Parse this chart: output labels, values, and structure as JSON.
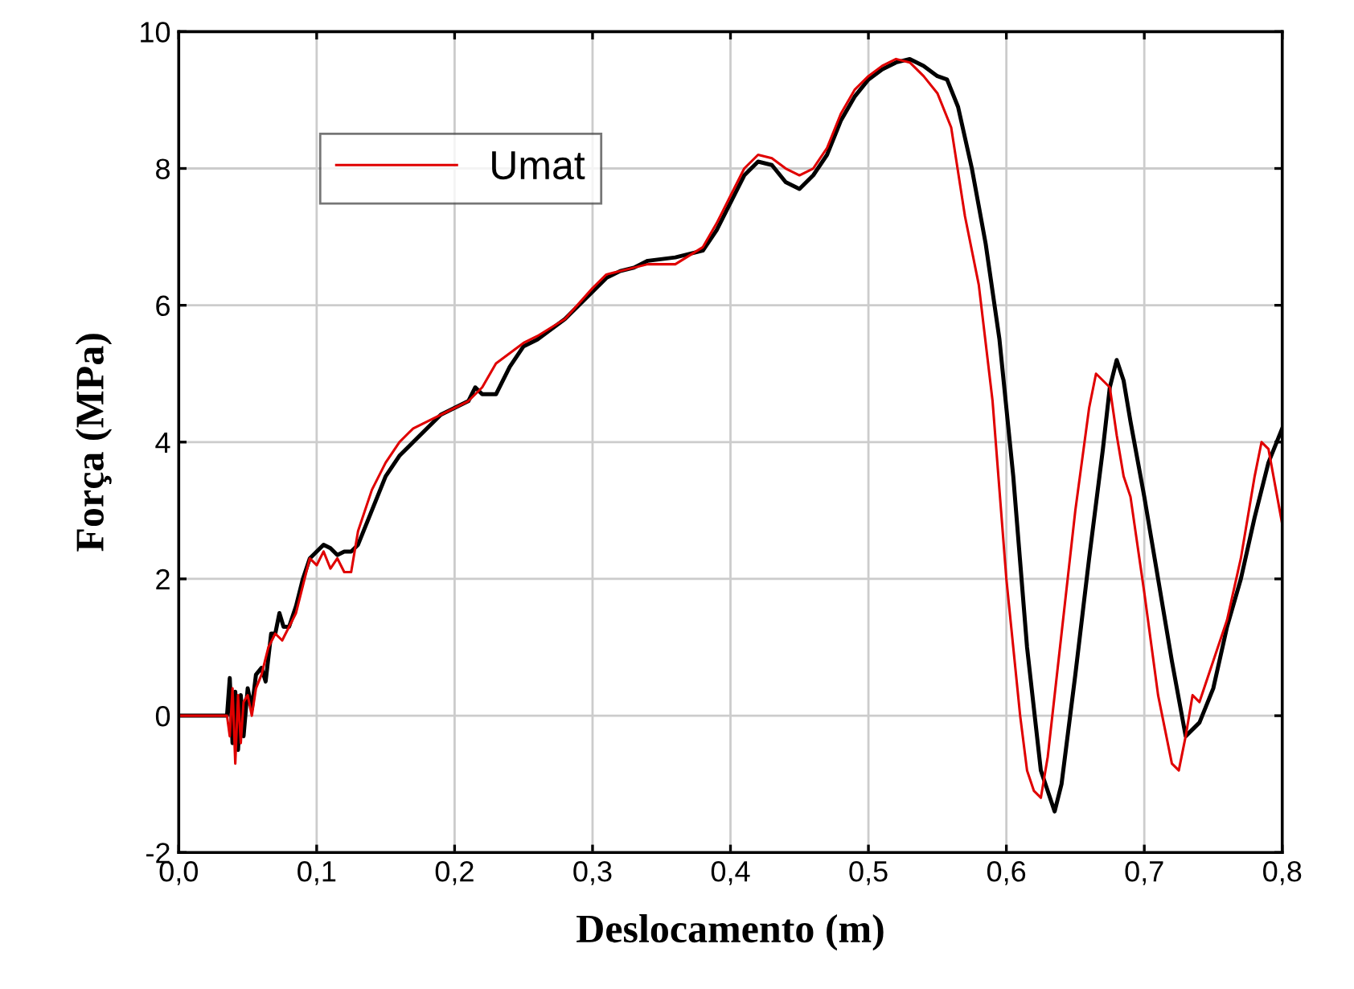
{
  "chart_data": {
    "type": "line",
    "xlabel": "Deslocamento (m)",
    "ylabel": "Força (MPa)",
    "xlim": [
      0,
      0.8
    ],
    "ylim": [
      -2,
      10
    ],
    "xticks": [
      {
        "value": 0,
        "label": "0,0"
      },
      {
        "value": 0.1,
        "label": "0,1"
      },
      {
        "value": 0.2,
        "label": "0,2"
      },
      {
        "value": 0.3,
        "label": "0,3"
      },
      {
        "value": 0.4,
        "label": "0,4"
      },
      {
        "value": 0.5,
        "label": "0,5"
      },
      {
        "value": 0.6,
        "label": "0,6"
      },
      {
        "value": 0.7,
        "label": "0,7"
      },
      {
        "value": 0.8,
        "label": "0,8"
      }
    ],
    "yticks": [
      -2,
      0,
      2,
      4,
      6,
      8,
      10
    ],
    "grid": true,
    "legend": "top left",
    "marker": "none",
    "line_style": "solid",
    "series": [
      {
        "color": "#000000",
        "x": [
          0,
          0.035,
          0.037,
          0.039,
          0.041,
          0.043,
          0.045,
          0.047,
          0.05,
          0.053,
          0.056,
          0.06,
          0.063,
          0.067,
          0.07,
          0.073,
          0.076,
          0.08,
          0.085,
          0.09,
          0.095,
          0.1,
          0.105,
          0.11,
          0.115,
          0.12,
          0.125,
          0.13,
          0.14,
          0.15,
          0.16,
          0.17,
          0.18,
          0.19,
          0.2,
          0.21,
          0.215,
          0.22,
          0.23,
          0.24,
          0.25,
          0.26,
          0.27,
          0.28,
          0.3,
          0.31,
          0.32,
          0.33,
          0.34,
          0.36,
          0.38,
          0.39,
          0.4,
          0.41,
          0.42,
          0.43,
          0.44,
          0.45,
          0.46,
          0.47,
          0.48,
          0.49,
          0.5,
          0.51,
          0.52,
          0.53,
          0.54,
          0.55,
          0.557,
          0.565,
          0.575,
          0.585,
          0.595,
          0.605,
          0.615,
          0.625,
          0.63,
          0.635,
          0.64,
          0.65,
          0.66,
          0.67,
          0.675,
          0.68,
          0.685,
          0.69,
          0.7,
          0.71,
          0.72,
          0.73,
          0.74,
          0.75,
          0.76,
          0.77,
          0.78,
          0.79,
          0.8
        ],
        "values": [
          0,
          0,
          0.55,
          -0.4,
          0.35,
          -0.5,
          0.3,
          -0.3,
          0.4,
          0.1,
          0.6,
          0.7,
          0.5,
          1.2,
          1.2,
          1.5,
          1.3,
          1.3,
          1.6,
          2.0,
          2.3,
          2.4,
          2.5,
          2.45,
          2.35,
          2.4,
          2.4,
          2.5,
          3.0,
          3.5,
          3.8,
          4.0,
          4.2,
          4.4,
          4.5,
          4.6,
          4.8,
          4.7,
          4.7,
          5.1,
          5.4,
          5.5,
          5.65,
          5.8,
          6.2,
          6.4,
          6.5,
          6.55,
          6.65,
          6.7,
          6.8,
          7.1,
          7.5,
          7.9,
          8.1,
          8.05,
          7.8,
          7.7,
          7.9,
          8.2,
          8.7,
          9.05,
          9.3,
          9.45,
          9.55,
          9.6,
          9.5,
          9.35,
          9.3,
          8.9,
          8.0,
          6.9,
          5.5,
          3.5,
          1.0,
          -0.8,
          -1.1,
          -1.4,
          -1.0,
          0.6,
          2.3,
          3.9,
          4.8,
          5.2,
          4.9,
          4.3,
          3.2,
          2.0,
          0.8,
          -0.3,
          -0.1,
          0.4,
          1.3,
          2.0,
          2.9,
          3.7,
          4.2
        ]
      },
      {
        "name": "Umat",
        "color": "#e00000",
        "x": [
          0,
          0.035,
          0.037,
          0.039,
          0.041,
          0.043,
          0.045,
          0.047,
          0.05,
          0.053,
          0.056,
          0.06,
          0.065,
          0.07,
          0.075,
          0.08,
          0.085,
          0.09,
          0.095,
          0.1,
          0.105,
          0.11,
          0.115,
          0.12,
          0.125,
          0.13,
          0.14,
          0.15,
          0.16,
          0.17,
          0.18,
          0.19,
          0.2,
          0.21,
          0.22,
          0.23,
          0.24,
          0.25,
          0.26,
          0.28,
          0.3,
          0.31,
          0.32,
          0.34,
          0.36,
          0.38,
          0.39,
          0.4,
          0.41,
          0.42,
          0.43,
          0.44,
          0.45,
          0.46,
          0.47,
          0.48,
          0.49,
          0.5,
          0.51,
          0.52,
          0.53,
          0.54,
          0.55,
          0.56,
          0.57,
          0.58,
          0.59,
          0.6,
          0.61,
          0.615,
          0.62,
          0.625,
          0.63,
          0.64,
          0.65,
          0.66,
          0.665,
          0.67,
          0.675,
          0.68,
          0.685,
          0.69,
          0.7,
          0.71,
          0.72,
          0.725,
          0.73,
          0.735,
          0.74,
          0.75,
          0.76,
          0.77,
          0.78,
          0.785,
          0.79,
          0.8
        ],
        "values": [
          0,
          0,
          -0.3,
          0.4,
          -0.7,
          0.3,
          -0.4,
          0.2,
          0.3,
          0.0,
          0.4,
          0.6,
          1.0,
          1.2,
          1.1,
          1.3,
          1.5,
          1.9,
          2.3,
          2.2,
          2.4,
          2.15,
          2.3,
          2.1,
          2.1,
          2.7,
          3.3,
          3.7,
          4.0,
          4.2,
          4.3,
          4.4,
          4.5,
          4.6,
          4.8,
          5.15,
          5.3,
          5.45,
          5.55,
          5.8,
          6.25,
          6.45,
          6.5,
          6.6,
          6.6,
          6.85,
          7.2,
          7.6,
          8.0,
          8.2,
          8.15,
          8.0,
          7.9,
          8.0,
          8.3,
          8.8,
          9.15,
          9.35,
          9.5,
          9.6,
          9.55,
          9.35,
          9.1,
          8.6,
          7.3,
          6.3,
          4.6,
          2.0,
          0.0,
          -0.8,
          -1.1,
          -1.2,
          -0.6,
          1.2,
          3.0,
          4.5,
          5.0,
          4.9,
          4.8,
          4.1,
          3.5,
          3.2,
          1.8,
          0.3,
          -0.7,
          -0.8,
          -0.3,
          0.3,
          0.2,
          0.8,
          1.4,
          2.3,
          3.5,
          4.0,
          3.9,
          2.8
        ]
      }
    ]
  }
}
